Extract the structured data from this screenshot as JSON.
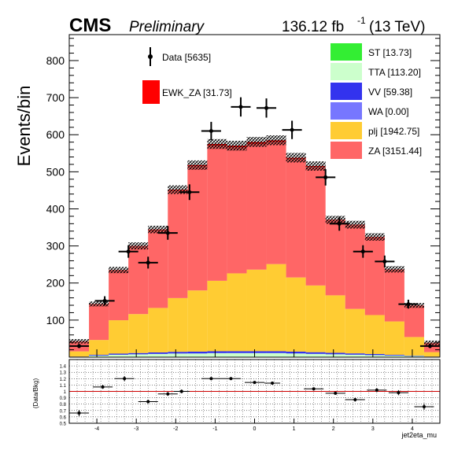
{
  "header": {
    "cms": "CMS",
    "preliminary": "Preliminary",
    "lumi": "136.12 fb",
    "lumi_exp": "-1",
    "energy": "(13 TeV)"
  },
  "axes": {
    "ylabel": "Events/bin",
    "ratio_ylabel": "(Data/Bkg)",
    "xlabel": "jet2eta_mu"
  },
  "legend": {
    "data": "Data [5635]",
    "signal": "EWK_ZA [31.73]",
    "stack": [
      "ST [13.73]",
      "TTA [113.20]",
      "VV [59.38]",
      "WA [0.00]",
      "plj [1942.75]",
      "ZA [3151.44]"
    ]
  },
  "colors": {
    "ST": "#33ee33",
    "TTA": "#ccffcc",
    "VV": "#3333ee",
    "WA": "#7777ff",
    "plj": "#ffcc33",
    "ZA": "#ff6666",
    "EWK_ZA": "#ff0000",
    "ratio_line": "#cc0000"
  },
  "chart_data": {
    "type": "bar",
    "stacked": true,
    "bin_edges": [
      -4.7,
      -4.2,
      -3.7,
      -3.2,
      -2.7,
      -2.2,
      -1.7,
      -1.2,
      -0.7,
      -0.2,
      0.3,
      0.8,
      1.3,
      1.8,
      2.3,
      2.8,
      3.3,
      3.8,
      4.3,
      4.7
    ],
    "ylim": [
      0,
      870
    ],
    "yticks": [
      100,
      200,
      300,
      400,
      500,
      600,
      700,
      800
    ],
    "series": [
      {
        "name": "ST",
        "values": [
          0.1,
          0.4,
          0.6,
          0.7,
          0.8,
          0.9,
          1.0,
          1.0,
          1.1,
          1.1,
          1.1,
          1.0,
          0.9,
          0.8,
          0.7,
          0.6,
          0.4,
          0.3,
          0.1
        ]
      },
      {
        "name": "TTA",
        "values": [
          1,
          4,
          6,
          7,
          8,
          9,
          9,
          10,
          10,
          10,
          10,
          9,
          8,
          7,
          6,
          5,
          4,
          3,
          1
        ]
      },
      {
        "name": "VV",
        "values": [
          0.5,
          2,
          3,
          3.5,
          4,
          4.5,
          5,
          5,
          5,
          5,
          5,
          5,
          4.5,
          4,
          3.5,
          3,
          2,
          1,
          0.5
        ]
      },
      {
        "name": "WA",
        "values": [
          0,
          0,
          0,
          0,
          0,
          0,
          0,
          0,
          0,
          0,
          0,
          0,
          0,
          0,
          0,
          0,
          0,
          0,
          0
        ]
      },
      {
        "name": "plj",
        "values": [
          14,
          40,
          90,
          105,
          120,
          145,
          165,
          190,
          210,
          220,
          235,
          200,
          180,
          155,
          120,
          105,
          90,
          50,
          12
        ]
      },
      {
        "name": "ZA",
        "values": [
          27,
          97,
          135,
          183,
          210,
          290,
          335,
          365,
          340,
          340,
          330,
          320,
          320,
          202,
          226,
          210,
          140,
          85,
          25
        ]
      }
    ],
    "signal": {
      "name": "EWK_ZA",
      "values": [
        0.1,
        0.3,
        0.5,
        0.9,
        1.5,
        2.4,
        3.2,
        4.0,
        4.4,
        4.5,
        3.9,
        3.0,
        2.2,
        1.6,
        1.1,
        0.7,
        0.5,
        0.3,
        0.1
      ]
    },
    "data": {
      "name": "Data",
      "values": [
        30,
        152,
        285,
        255,
        335,
        445,
        610,
        675,
        672,
        613,
        485,
        360,
        285,
        258,
        143,
        30
      ],
      "x": [
        -4.45,
        -3.8,
        -3.2,
        -2.7,
        -2.2,
        -1.65,
        -1.1,
        -0.35,
        0.3,
        0.95,
        1.8,
        2.15,
        2.75,
        3.3,
        3.9,
        4.45
      ]
    },
    "ratio": {
      "ylim": [
        0.5,
        1.5
      ],
      "yticks": [
        0.5,
        0.6,
        0.7,
        0.8,
        0.9,
        1.0,
        1.1,
        1.2,
        1.3,
        1.4
      ],
      "ytick_labels": [
        "0.5",
        "0.6",
        "0.7",
        "0.8",
        "0.9",
        "1",
        "1.1",
        "1.2",
        "1.3",
        "1.4"
      ],
      "x": [
        -4.45,
        -3.85,
        -3.3,
        -2.7,
        -2.2,
        -1.85,
        -1.1,
        -0.6,
        0.0,
        0.45,
        1.5,
        2.05,
        2.55,
        3.1,
        3.65,
        4.3
      ],
      "values": [
        0.66,
        1.07,
        1.2,
        0.84,
        0.96,
        1.0,
        1.2,
        1.2,
        1.14,
        1.13,
        1.04,
        0.97,
        0.87,
        1.02,
        0.98,
        0.76
      ],
      "xerr": [
        0.25,
        0.25,
        0.25,
        0.25,
        0.25,
        0.2,
        0.25,
        0.25,
        0.25,
        0.2,
        0.25,
        0.25,
        0.25,
        0.25,
        0.25,
        0.25
      ],
      "yerr": [
        0.05,
        0.03,
        0.04,
        0.03,
        0.03,
        0.03,
        0.02,
        0.02,
        0.02,
        0.02,
        0.02,
        0.02,
        0.03,
        0.03,
        0.04,
        0.05
      ]
    },
    "xlim": [
      -4.7,
      4.7
    ],
    "xticks": [
      -4,
      -3,
      -2,
      -1,
      0,
      1,
      2,
      3,
      4
    ],
    "xtick_labels": [
      "-4",
      "-3",
      "-2",
      "-1",
      "0",
      "1",
      "2",
      "3",
      "4"
    ]
  }
}
